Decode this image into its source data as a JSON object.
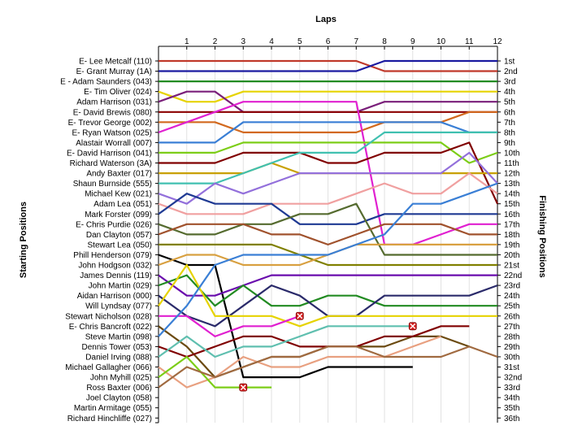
{
  "chart_data": {
    "type": "line",
    "title": "",
    "xlabel": "Laps",
    "ylabel_left": "Starting Positions",
    "ylabel_right": "Finishing Positions",
    "laps": [
      1,
      2,
      3,
      4,
      5,
      6,
      7,
      8,
      9,
      10,
      11,
      12
    ],
    "position_labels": [
      "1st",
      "2nd",
      "3rd",
      "4th",
      "5th",
      "6th",
      "7th",
      "8th",
      "9th",
      "10th",
      "11th",
      "12th",
      "13th",
      "14th",
      "15th",
      "16th",
      "17th",
      "18th",
      "19th",
      "20th",
      "21st",
      "22nd",
      "23rd",
      "24th",
      "25th",
      "26th",
      "27th",
      "28th",
      "29th",
      "30th",
      "31st",
      "32nd",
      "33rd",
      "34th",
      "35th",
      "36th"
    ],
    "series": [
      {
        "name": "E- Lee Metcalf (110)",
        "color": "#c0392b",
        "positions": [
          1,
          1,
          1,
          1,
          1,
          1,
          1,
          1,
          2,
          2,
          2,
          2,
          2
        ]
      },
      {
        "name": "E- Grant Murray (1A)",
        "color": "#1a1aa0",
        "positions": [
          2,
          2,
          2,
          2,
          2,
          2,
          2,
          2,
          1,
          1,
          1,
          1,
          1
        ]
      },
      {
        "name": "E - Adam Saunders (043)",
        "color": "#228b22",
        "positions": [
          3,
          3,
          3,
          3,
          3,
          3,
          3,
          3,
          3,
          3,
          3,
          3,
          3
        ]
      },
      {
        "name": "E- Tim Oliver (024)",
        "color": "#e6d300",
        "positions": [
          4,
          5,
          5,
          4,
          4,
          4,
          4,
          4,
          4,
          4,
          4,
          4,
          4
        ]
      },
      {
        "name": "Adam Harrison (031)",
        "color": "#7a1f7a",
        "positions": [
          5,
          4,
          4,
          6,
          6,
          6,
          6,
          6,
          5,
          5,
          5,
          5,
          5
        ]
      },
      {
        "name": "E- David Brewis (080)",
        "color": "#8b0000",
        "positions": [
          6,
          6,
          6,
          6,
          6,
          6,
          6,
          6,
          6,
          6,
          6,
          6,
          6
        ]
      },
      {
        "name": "E- Trevor George (002)",
        "color": "#d2691e",
        "positions": [
          7,
          7,
          7,
          8,
          8,
          8,
          8,
          8,
          7,
          7,
          7,
          6,
          6
        ]
      },
      {
        "name": "E- Ryan Watson (025)",
        "color": "#e020d0",
        "positions": [
          8,
          7,
          6,
          5,
          5,
          5,
          5,
          5,
          19,
          19,
          18,
          17,
          17
        ]
      },
      {
        "name": "Alastair Worrall (007)",
        "color": "#3a7fd5",
        "positions": [
          9,
          9,
          9,
          7,
          7,
          7,
          7,
          7,
          7,
          7,
          7,
          8,
          8
        ]
      },
      {
        "name": "E- David Harrison (041)",
        "color": "#7ccd17",
        "positions": [
          10,
          10,
          10,
          9,
          9,
          9,
          9,
          9,
          9,
          9,
          9,
          11,
          10
        ]
      },
      {
        "name": "Richard Waterson (3A)",
        "color": "#800000",
        "positions": [
          11,
          11,
          11,
          10,
          10,
          10,
          11,
          11,
          10,
          10,
          10,
          9,
          15
        ]
      },
      {
        "name": "Andy Baxter (017)",
        "color": "#c8a000",
        "positions": [
          12,
          12,
          12,
          12,
          11,
          12,
          12,
          12,
          12,
          12,
          12,
          12,
          12
        ]
      },
      {
        "name": "Shaun Burnside (555)",
        "color": "#40c0b0",
        "positions": [
          13,
          13,
          13,
          12,
          11,
          10,
          10,
          10,
          8,
          8,
          8,
          8,
          8
        ]
      },
      {
        "name": "Michael Kew (021)",
        "color": "#9370db",
        "positions": [
          14,
          15,
          13,
          14,
          13,
          12,
          12,
          12,
          12,
          12,
          12,
          10,
          13
        ]
      },
      {
        "name": "Adam Lea (051)",
        "color": "#f0a0a0",
        "positions": [
          15,
          16,
          16,
          16,
          15,
          15,
          15,
          14,
          13,
          14,
          14,
          12,
          14
        ]
      },
      {
        "name": "Mark Forster (099)",
        "color": "#1f3a93",
        "positions": [
          16,
          14,
          15,
          15,
          15,
          17,
          17,
          17,
          16,
          16,
          16,
          16,
          16
        ]
      },
      {
        "name": "E- Chris Purdie (026)",
        "color": "#556b2f",
        "positions": [
          17,
          18,
          18,
          17,
          17,
          16,
          16,
          15,
          20,
          20,
          20,
          20,
          20
        ]
      },
      {
        "name": "Dan Clayton (057)",
        "color": "#a0522d",
        "positions": [
          18,
          17,
          17,
          17,
          18,
          18,
          19,
          18,
          17,
          17,
          17,
          18,
          18
        ]
      },
      {
        "name": "Stewart Lea (050)",
        "color": "#808000",
        "positions": [
          19,
          19,
          19,
          19,
          19,
          20,
          21,
          21,
          21,
          21,
          21,
          21,
          21
        ]
      },
      {
        "name": "Phill Henderson (079)",
        "color": "#000000",
        "positions": [
          20,
          21,
          21,
          32,
          32,
          32,
          31,
          31,
          31,
          31
        ]
      },
      {
        "name": "John Hodgson (032)",
        "color": "#d8a040",
        "positions": [
          21,
          20,
          20,
          21,
          21,
          21,
          20,
          19,
          19,
          19,
          19,
          19,
          19
        ]
      },
      {
        "name": "James Dennis (119)",
        "color": "#6a0dad",
        "positions": [
          22,
          24,
          24,
          23,
          22,
          22,
          22,
          22,
          22,
          22,
          22,
          22,
          22
        ]
      },
      {
        "name": "John Martin (029)",
        "color": "#228b22",
        "positions": [
          23,
          22,
          25,
          23,
          25,
          25,
          24,
          24,
          25,
          25,
          25,
          25,
          25
        ]
      },
      {
        "name": "Aidan Harrison (000)",
        "color": "#2a2a6a",
        "positions": [
          24,
          26,
          27,
          25,
          23,
          24,
          26,
          26,
          24,
          24,
          24,
          24,
          23
        ]
      },
      {
        "name": "Will Lyndsay (077)",
        "color": "#e6d300",
        "positions": [
          25,
          21,
          26,
          26,
          26,
          27,
          26,
          26,
          26,
          26,
          26,
          26,
          26
        ]
      },
      {
        "name": "Stewart Nicholson (028)",
        "color": "#e020d0",
        "positions": [
          26,
          26,
          28,
          27,
          27,
          26
        ]
      },
      {
        "name": "E- Chris Bancroft (022)",
        "color": "#6b4a10",
        "positions": [
          27,
          29,
          32,
          31,
          30,
          30,
          29,
          29,
          29,
          28,
          28,
          29
        ]
      },
      {
        "name": "Steve Martin (098)",
        "color": "#3a7fd5",
        "positions": [
          28,
          25,
          21,
          20,
          20,
          20,
          20,
          19,
          18,
          15,
          15,
          14,
          13
        ]
      },
      {
        "name": "Dennis Tower (053)",
        "color": "#800000",
        "positions": [
          29,
          30,
          29,
          28,
          28,
          29,
          29,
          29,
          28,
          28,
          27,
          27
        ]
      },
      {
        "name": "Daniel Irving (088)",
        "color": "#5fbfaf",
        "positions": [
          30,
          28,
          30,
          29,
          29,
          28,
          27,
          27,
          27,
          27
        ]
      },
      {
        "name": "Michael Gallagher (066)",
        "color": "#e8a080",
        "positions": [
          31,
          33,
          32,
          30,
          31,
          31,
          30,
          30,
          30,
          29,
          28
        ]
      },
      {
        "name": "John Myhill (025)",
        "color": "#7ccd17",
        "positions": [
          32,
          30,
          33,
          33,
          33
        ]
      },
      {
        "name": "Ross Baxter (006)",
        "color": "#a06a40",
        "positions": [
          33,
          31,
          32,
          31,
          30,
          30,
          29,
          29,
          30,
          30,
          30,
          29,
          30
        ]
      },
      {
        "name": "Joel Clayton (058)",
        "color": "#000000",
        "positions": []
      },
      {
        "name": "Martin Armitage (055)",
        "color": "#000000",
        "positions": []
      },
      {
        "name": "Richard Hinchliffe (027)",
        "color": "#000000",
        "positions": []
      }
    ],
    "retirements": [
      {
        "lap": 3,
        "position": 33
      },
      {
        "lap": 5,
        "position": 26
      },
      {
        "lap": 9,
        "position": 27
      }
    ]
  }
}
